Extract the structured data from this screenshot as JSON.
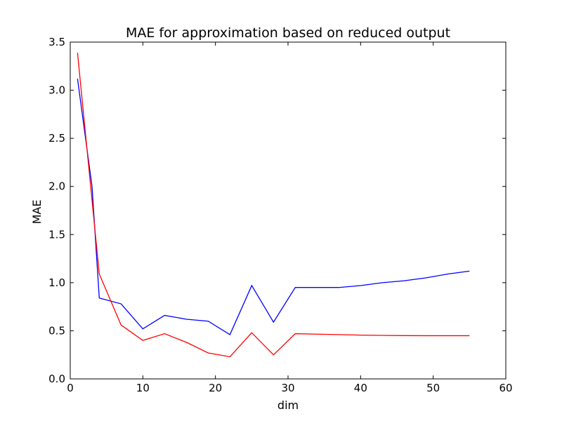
{
  "chart_data": {
    "type": "line",
    "title": "MAE for approximation based on reduced output",
    "xlabel": "dim",
    "ylabel": "MAE",
    "xlim": [
      0,
      60
    ],
    "ylim": [
      0.0,
      3.5
    ],
    "x_ticks": [
      "0",
      "10",
      "20",
      "30",
      "40",
      "50",
      "60"
    ],
    "y_ticks": [
      "0.0",
      "0.5",
      "1.0",
      "1.5",
      "2.0",
      "2.5",
      "3.0",
      "3.5"
    ],
    "grid": false,
    "legend": "none",
    "series": [
      {
        "color": "#0000ff",
        "x": [
          1,
          3,
          4,
          7,
          10,
          13,
          16,
          19,
          22,
          25,
          28,
          31,
          34,
          37,
          40,
          43,
          46,
          49,
          52,
          55
        ],
        "y": [
          3.12,
          2.0,
          0.84,
          0.78,
          0.52,
          0.66,
          0.62,
          0.6,
          0.46,
          0.97,
          0.59,
          0.95,
          0.95,
          0.95,
          0.97,
          1.0,
          1.02,
          1.05,
          1.09,
          1.12
        ]
      },
      {
        "color": "#ff0000",
        "x": [
          1,
          4,
          7,
          10,
          13,
          16,
          19,
          22,
          25,
          28,
          31,
          34,
          37,
          40,
          43,
          46,
          49,
          52,
          55
        ],
        "y": [
          3.39,
          1.09,
          0.56,
          0.4,
          0.47,
          0.38,
          0.27,
          0.23,
          0.48,
          0.25,
          0.47,
          0.465,
          0.46,
          0.455,
          0.452,
          0.45,
          0.449,
          0.449,
          0.449
        ]
      }
    ]
  }
}
